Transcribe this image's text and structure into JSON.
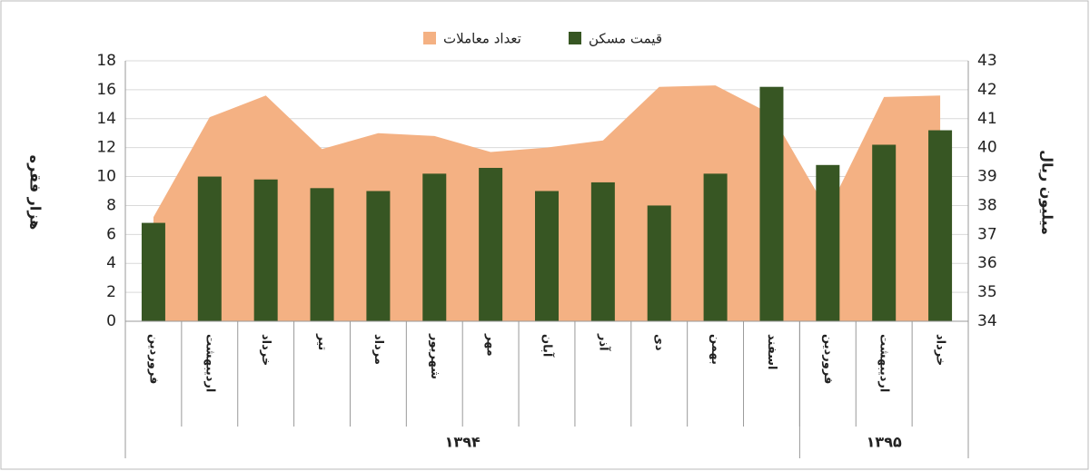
{
  "chart_data": {
    "type": "bar-area",
    "y_label": "هزار فقره",
    "y2_label": "میلیون ریال",
    "categories": [
      "فروردین",
      "اردیبهشت",
      "خرداد",
      "تیر",
      "مرداد",
      "شهریور",
      "مهر",
      "آبان",
      "آذر",
      "دی",
      "بهمن",
      "اسفند",
      "فروردین",
      "اردیبهشت",
      "خرداد"
    ],
    "groups": [
      {
        "label": "۱۳۹۴",
        "span": 12
      },
      {
        "label": "۱۳۹۵",
        "span": 3
      }
    ],
    "series": [
      {
        "name": "تعداد معاملات",
        "type": "area",
        "color": "#f4b183",
        "values": [
          7.2,
          14.1,
          15.6,
          11.9,
          13.0,
          12.8,
          11.7,
          12.0,
          12.5,
          16.2,
          16.3,
          14.3,
          7.6,
          15.5,
          15.6
        ]
      },
      {
        "name": "قیمت مسکن",
        "type": "bar",
        "axis": "y2",
        "color": "#375623",
        "values": [
          37.4,
          39.0,
          38.9,
          38.6,
          38.5,
          39.1,
          39.3,
          38.5,
          38.8,
          38.0,
          39.1,
          42.1,
          39.4,
          40.1,
          40.6
        ]
      }
    ],
    "ylim": [
      0,
      18
    ],
    "yticks": [
      0,
      2,
      4,
      6,
      8,
      10,
      12,
      14,
      16,
      18
    ],
    "y2lim": [
      34,
      43
    ],
    "y2ticks": [
      34,
      35,
      36,
      37,
      38,
      39,
      40,
      41,
      42,
      43
    ],
    "grid": true
  }
}
